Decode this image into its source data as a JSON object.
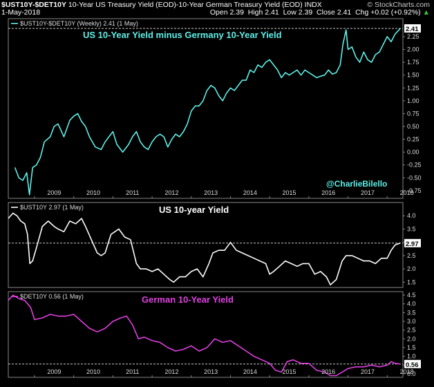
{
  "header": {
    "symbol": "$UST10Y-$DET10Y",
    "description": "10-Year US Treasury Yield (EOD)-10-Year German Treasury Yield (EOD)",
    "exchange": "INDX",
    "watermark": "© StockCharts.com",
    "date": "1-May-2018",
    "open_label": "Open",
    "open": "2.39",
    "high_label": "High",
    "high": "2.41",
    "low_label": "Low",
    "low": "2.39",
    "close_label": "Close",
    "close": "2.41",
    "chg_label": "Chg",
    "chg": "+0.02 (+0.92%)",
    "chg_arrow": "▲"
  },
  "chart_data": [
    {
      "type": "line",
      "legend": "$UST10Y-$DET10Y (Weekly) 2.41 (1 May)",
      "title": "US 10-Year Yield minus Germany 10-Year Yield",
      "annotation": "@CharlieBilello",
      "last_value_label": "2.41",
      "reference_line": 2.41,
      "color": "#5ff0e8",
      "ylim": [
        -0.9,
        2.6
      ],
      "yticks": [
        "-0.75",
        "-0.50",
        "-0.25",
        "0.00",
        "0.25",
        "0.50",
        "0.75",
        "1.00",
        "1.25",
        "1.50",
        "1.75",
        "2.00",
        "2.25"
      ],
      "xticks": [
        "2009",
        "2010",
        "2011",
        "2012",
        "2013",
        "2014",
        "2015",
        "2016",
        "2017",
        "2018"
      ],
      "x": [
        2008.5,
        2008.6,
        2008.7,
        2008.8,
        2008.87,
        2008.95,
        2009.05,
        2009.15,
        2009.25,
        2009.4,
        2009.5,
        2009.6,
        2009.75,
        2009.9,
        2010.0,
        2010.1,
        2010.2,
        2010.3,
        2010.4,
        2010.55,
        2010.7,
        2010.8,
        2010.9,
        2011.0,
        2011.1,
        2011.25,
        2011.4,
        2011.5,
        2011.6,
        2011.7,
        2011.8,
        2011.9,
        2012.0,
        2012.1,
        2012.2,
        2012.3,
        2012.4,
        2012.5,
        2012.6,
        2012.7,
        2012.8,
        2012.9,
        2013.0,
        2013.1,
        2013.2,
        2013.3,
        2013.4,
        2013.5,
        2013.6,
        2013.7,
        2013.8,
        2013.9,
        2014.0,
        2014.1,
        2014.2,
        2014.3,
        2014.4,
        2014.5,
        2014.6,
        2014.7,
        2014.8,
        2014.9,
        2015.0,
        2015.1,
        2015.2,
        2015.3,
        2015.4,
        2015.5,
        2015.6,
        2015.7,
        2015.8,
        2015.9,
        2016.0,
        2016.1,
        2016.2,
        2016.3,
        2016.4,
        2016.5,
        2016.6,
        2016.7,
        2016.8,
        2016.87,
        2016.95,
        2017.0,
        2017.1,
        2017.2,
        2017.3,
        2017.4,
        2017.5,
        2017.6,
        2017.7,
        2017.8,
        2017.9,
        2018.0,
        2018.1,
        2018.2,
        2018.3,
        2018.33
      ],
      "values": [
        -0.3,
        -0.5,
        -0.55,
        -0.4,
        -0.83,
        -0.3,
        -0.25,
        -0.1,
        0.2,
        0.3,
        0.5,
        0.55,
        0.3,
        0.62,
        0.7,
        0.75,
        0.6,
        0.5,
        0.3,
        0.1,
        0.05,
        0.2,
        0.3,
        0.4,
        0.15,
        0.0,
        0.15,
        0.3,
        0.4,
        0.2,
        0.1,
        0.05,
        0.2,
        0.3,
        0.35,
        0.3,
        0.1,
        0.25,
        0.35,
        0.3,
        0.4,
        0.55,
        0.8,
        0.9,
        0.9,
        1.0,
        1.2,
        1.3,
        1.25,
        1.1,
        1.0,
        1.15,
        1.25,
        1.2,
        1.3,
        1.4,
        1.4,
        1.6,
        1.55,
        1.7,
        1.65,
        1.75,
        1.8,
        1.7,
        1.6,
        1.45,
        1.55,
        1.5,
        1.55,
        1.6,
        1.5,
        1.6,
        1.55,
        1.5,
        1.45,
        1.48,
        1.5,
        1.6,
        1.52,
        1.55,
        1.7,
        2.1,
        2.38,
        2.0,
        2.05,
        1.85,
        1.75,
        1.95,
        1.8,
        1.75,
        1.9,
        1.95,
        2.1,
        2.25,
        2.15,
        2.3,
        2.38,
        2.41
      ]
    },
    {
      "type": "line",
      "legend": "$UST10Y 2.97 (1 May)",
      "title": "US 10-year Yield",
      "last_value_label": "2.97",
      "reference_line": 2.97,
      "color": "#ffffff",
      "ylim": [
        1.3,
        4.5
      ],
      "yticks": [
        "1.5",
        "2.0",
        "2.5",
        "3.0",
        "3.5",
        "4.0"
      ],
      "x": [
        2008.33,
        2008.45,
        2008.55,
        2008.65,
        2008.75,
        2008.82,
        2008.88,
        2008.95,
        2009.05,
        2009.2,
        2009.35,
        2009.5,
        2009.6,
        2009.75,
        2009.9,
        2010.05,
        2010.2,
        2010.3,
        2010.45,
        2010.6,
        2010.7,
        2010.8,
        2010.95,
        2011.05,
        2011.15,
        2011.3,
        2011.45,
        2011.6,
        2011.7,
        2011.85,
        2012.0,
        2012.15,
        2012.3,
        2012.45,
        2012.55,
        2012.7,
        2012.85,
        2013.0,
        2013.15,
        2013.3,
        2013.45,
        2013.55,
        2013.7,
        2013.85,
        2014.0,
        2014.15,
        2014.3,
        2014.45,
        2014.6,
        2014.75,
        2014.9,
        2015.0,
        2015.1,
        2015.25,
        2015.4,
        2015.55,
        2015.7,
        2015.85,
        2016.0,
        2016.15,
        2016.3,
        2016.45,
        2016.55,
        2016.7,
        2016.85,
        2016.95,
        2017.1,
        2017.25,
        2017.4,
        2017.55,
        2017.7,
        2017.85,
        2018.0,
        2018.1,
        2018.2,
        2018.33
      ],
      "values": [
        3.9,
        4.1,
        4.0,
        3.8,
        3.7,
        3.3,
        2.2,
        2.3,
        2.8,
        3.6,
        3.8,
        3.6,
        3.5,
        3.4,
        3.8,
        3.7,
        3.9,
        3.6,
        3.1,
        2.6,
        2.5,
        2.6,
        3.3,
        3.4,
        3.5,
        3.2,
        3.1,
        2.2,
        2.0,
        2.0,
        1.9,
        2.0,
        1.8,
        1.6,
        1.5,
        1.7,
        1.7,
        1.9,
        2.0,
        1.7,
        2.2,
        2.6,
        2.7,
        2.7,
        3.0,
        2.7,
        2.6,
        2.5,
        2.4,
        2.3,
        2.2,
        1.8,
        1.9,
        2.1,
        2.3,
        2.2,
        2.1,
        2.2,
        2.2,
        1.8,
        1.9,
        1.7,
        1.4,
        1.6,
        2.3,
        2.5,
        2.5,
        2.4,
        2.3,
        2.3,
        2.2,
        2.4,
        2.4,
        2.7,
        2.9,
        2.97
      ]
    },
    {
      "type": "line",
      "legend": "$DET10Y 0.56 (1 May)",
      "title": "German 10-Year Yield",
      "last_value_label": "0.56",
      "reference_line": 0.56,
      "color": "#e040e0",
      "ylim": [
        -0.2,
        4.7
      ],
      "yticks": [
        "0.0",
        "0.5",
        "1.0",
        "1.5",
        "2.0",
        "2.5",
        "3.0",
        "3.5",
        "4.0",
        "4.5"
      ],
      "x": [
        2008.33,
        2008.45,
        2008.6,
        2008.75,
        2008.9,
        2009.0,
        2009.2,
        2009.4,
        2009.6,
        2009.8,
        2010.0,
        2010.2,
        2010.4,
        2010.6,
        2010.8,
        2011.0,
        2011.2,
        2011.35,
        2011.5,
        2011.65,
        2011.8,
        2012.0,
        2012.2,
        2012.4,
        2012.6,
        2012.8,
        2013.0,
        2013.2,
        2013.4,
        2013.6,
        2013.8,
        2014.0,
        2014.2,
        2014.4,
        2014.6,
        2014.8,
        2015.0,
        2015.15,
        2015.3,
        2015.45,
        2015.6,
        2015.8,
        2016.0,
        2016.2,
        2016.4,
        2016.55,
        2016.7,
        2016.85,
        2017.0,
        2017.2,
        2017.4,
        2017.6,
        2017.8,
        2018.0,
        2018.1,
        2018.2,
        2018.33
      ],
      "values": [
        4.2,
        4.5,
        4.3,
        4.2,
        3.8,
        3.1,
        3.2,
        3.4,
        3.3,
        3.3,
        3.4,
        3.0,
        2.6,
        2.4,
        2.6,
        3.0,
        3.2,
        3.3,
        2.8,
        2.0,
        2.1,
        1.9,
        1.8,
        1.5,
        1.3,
        1.4,
        1.6,
        1.3,
        1.5,
        2.0,
        1.8,
        1.9,
        1.6,
        1.3,
        1.0,
        0.8,
        0.6,
        0.2,
        0.1,
        0.7,
        0.8,
        0.6,
        0.6,
        0.2,
        0.1,
        -0.1,
        -0.1,
        0.1,
        0.3,
        0.4,
        0.4,
        0.5,
        0.4,
        0.5,
        0.7,
        0.6,
        0.56
      ]
    }
  ]
}
